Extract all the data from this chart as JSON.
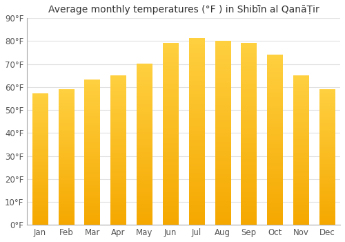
{
  "title": "Average monthly temperatures (°F ) in Shibī̄n al QanāṬir",
  "months": [
    "Jan",
    "Feb",
    "Mar",
    "Apr",
    "May",
    "Jun",
    "Jul",
    "Aug",
    "Sep",
    "Oct",
    "Nov",
    "Dec"
  ],
  "values": [
    57,
    59,
    63,
    65,
    70,
    79,
    81,
    80,
    79,
    74,
    65,
    59
  ],
  "ylim": [
    0,
    90
  ],
  "yticks": [
    0,
    10,
    20,
    30,
    40,
    50,
    60,
    70,
    80,
    90
  ],
  "ytick_labels": [
    "0°F",
    "10°F",
    "20°F",
    "30°F",
    "40°F",
    "50°F",
    "60°F",
    "70°F",
    "80°F",
    "90°F"
  ],
  "grid_color": "#e0e0e0",
  "background_color": "#ffffff",
  "title_fontsize": 10,
  "tick_fontsize": 8.5,
  "bar_color_dark": "#F5A800",
  "bar_color_light": "#FFD040",
  "bar_width": 0.6
}
